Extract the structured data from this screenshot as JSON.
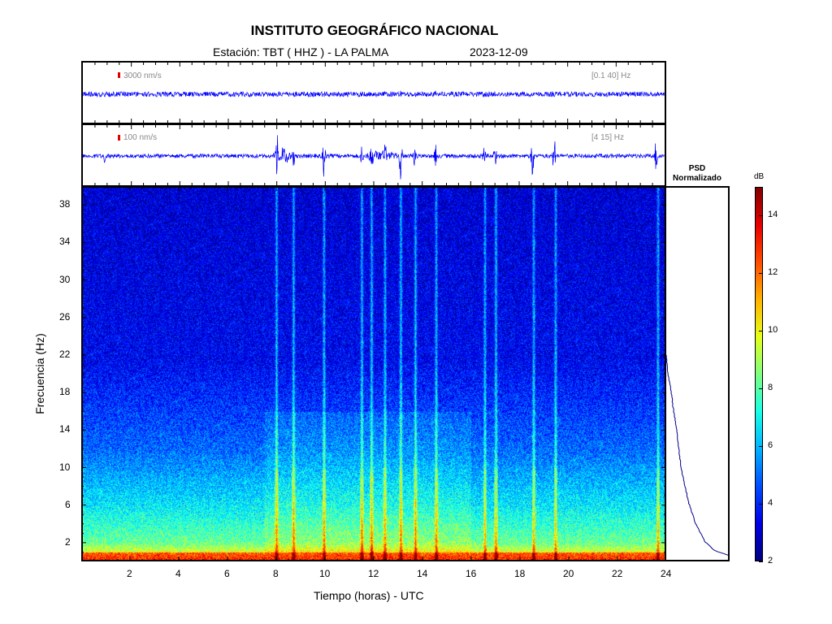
{
  "header": {
    "title": "INSTITUTO GEOGRÁFICO NACIONAL",
    "station": "Estación:  TBT ( HHZ ) - LA PALMA",
    "date": "2023-12-09"
  },
  "traces": [
    {
      "scale_label": "3000 nm/s",
      "band_label": "[0.1 40] Hz"
    },
    {
      "scale_label": "100 nm/s",
      "band_label": "[4 15] Hz"
    }
  ],
  "psd": {
    "title_line1": "PSD",
    "title_line2": "Normalizado"
  },
  "colorbar": {
    "unit": "dB",
    "ticks": [
      "14",
      "12",
      "10",
      "8",
      "6",
      "4",
      "2"
    ]
  },
  "colors": {
    "trace": "#0000ff",
    "scale_bar": "#e00000",
    "psd_line": "#00008b"
  },
  "chart_data": {
    "type": "heatmap",
    "title": "INSTITUTO GEOGRÁFICO NACIONAL",
    "xlabel": "Tiempo (horas) - UTC",
    "ylabel": "Frecuencia  (Hz)",
    "xlim": [
      0,
      24
    ],
    "ylim": [
      0,
      40
    ],
    "x_ticks": [
      "2",
      "4",
      "6",
      "8",
      "10",
      "12",
      "14",
      "16",
      "18",
      "20",
      "22",
      "24"
    ],
    "y_ticks": [
      "38",
      "34",
      "30",
      "26",
      "22",
      "18",
      "14",
      "10",
      "6",
      "2"
    ],
    "colorbar_range_db": [
      2,
      15
    ],
    "colorbar_ticks": [
      14,
      12,
      10,
      8,
      6,
      4,
      2
    ],
    "events_hours": [
      8.0,
      8.7,
      9.95,
      11.5,
      11.9,
      12.45,
      13.1,
      13.7,
      14.55,
      16.55,
      17.0,
      18.55,
      19.45,
      23.65
    ],
    "psd_normalized": {
      "freq_hz": [
        22,
        20,
        18,
        16,
        14,
        12,
        10,
        8,
        6,
        4,
        2,
        1,
        0.5
      ],
      "value": [
        0.0,
        0.03,
        0.08,
        0.12,
        0.17,
        0.2,
        0.24,
        0.3,
        0.37,
        0.47,
        0.62,
        0.78,
        1.0
      ]
    }
  }
}
